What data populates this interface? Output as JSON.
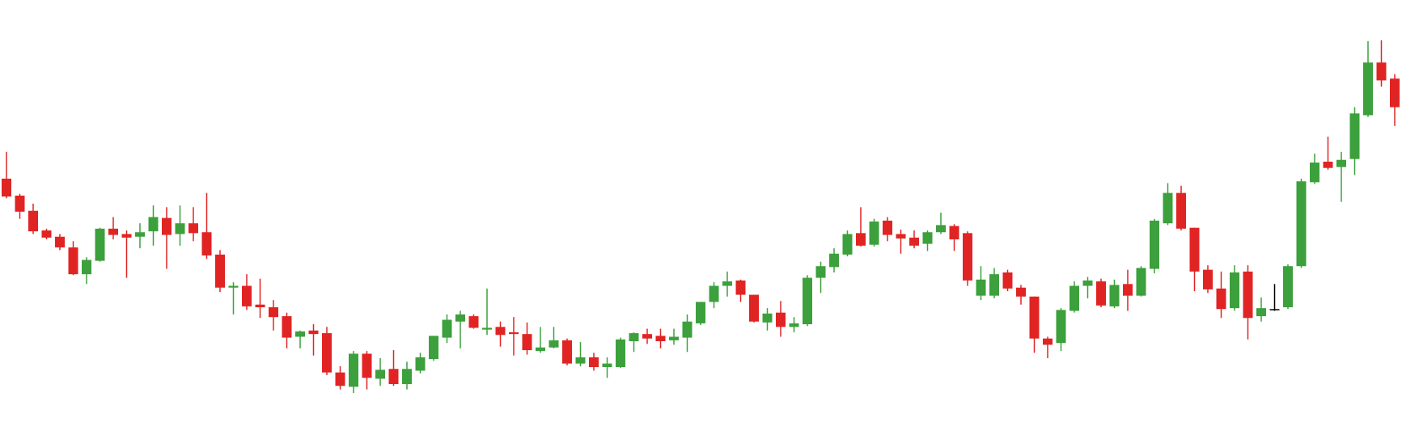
{
  "chart_data": {
    "type": "candlestick",
    "up_color": "#3ca03c",
    "down_color": "#e02424",
    "flat_color": "#000000",
    "ylim": [
      0,
      487
    ],
    "open": [
      287,
      268,
      251,
      229,
      222,
      210,
      180,
      195,
      231,
      225,
      222,
      228,
      243,
      225,
      237,
      227,
      202,
      165,
      167,
      146,
      143,
      133,
      110,
      117,
      114,
      70,
      54,
      91,
      63,
      74,
      57,
      72,
      85,
      109,
      127,
      133,
      118,
      121,
      115,
      113,
      94,
      98,
      106,
      80,
      87,
      76,
      76,
      105,
      113,
      111,
      106,
      109,
      125,
      149,
      167,
      173,
      157,
      126,
      137,
      121,
      124,
      176,
      188,
      202,
      226,
      213,
      240,
      225,
      221,
      214,
      227,
      234,
      226,
      156,
      156,
      182,
      165,
      155,
      108,
      103,
      139,
      167,
      172,
      144,
      169,
      156,
      186,
      237,
      271,
      232,
      185,
      164,
      142,
      183,
      133,
      141,
      143,
      189,
      283,
      306,
      300,
      309,
      358,
      417,
      399
    ],
    "high": [
      317,
      270,
      259,
      231,
      225,
      217,
      199,
      232,
      244,
      229,
      237,
      257,
      255,
      257,
      255,
      271,
      207,
      171,
      180,
      175,
      151,
      137,
      117,
      124,
      121,
      77,
      94,
      94,
      86,
      95,
      82,
      92,
      111,
      135,
      139,
      135,
      164,
      127,
      132,
      126,
      121,
      121,
      108,
      104,
      92,
      87,
      109,
      115,
      119,
      119,
      119,
      135,
      149,
      171,
      183,
      174,
      157,
      142,
      150,
      132,
      179,
      194,
      209,
      229,
      255,
      242,
      244,
      230,
      229,
      229,
      249,
      236,
      228,
      189,
      187,
      185,
      168,
      155,
      110,
      142,
      172,
      177,
      175,
      174,
      185,
      189,
      242,
      282,
      279,
      232,
      190,
      183,
      190,
      190,
      154,
      169,
      191,
      287,
      315,
      334,
      317,
      367,
      441,
      442,
      404
    ],
    "low": [
      265,
      242,
      225,
      219,
      207,
      179,
      169,
      194,
      219,
      176,
      209,
      212,
      186,
      212,
      217,
      197,
      160,
      135,
      140,
      131,
      117,
      97,
      97,
      89,
      67,
      51,
      47,
      51,
      55,
      55,
      51,
      69,
      83,
      103,
      97,
      119,
      112,
      99,
      89,
      90,
      92,
      97,
      78,
      77,
      72,
      64,
      75,
      93,
      102,
      97,
      101,
      93,
      123,
      142,
      155,
      149,
      126,
      117,
      110,
      115,
      122,
      159,
      182,
      200,
      211,
      211,
      217,
      203,
      209,
      206,
      225,
      206,
      167,
      151,
      153,
      161,
      146,
      92,
      86,
      94,
      137,
      153,
      143,
      142,
      139,
      155,
      181,
      235,
      229,
      161,
      159,
      131,
      139,
      107,
      127,
      139,
      141,
      187,
      281,
      297,
      261,
      291,
      356,
      390,
      346
    ],
    "close": [
      267,
      250,
      228,
      221,
      210,
      180,
      196,
      231,
      224,
      221,
      227,
      244,
      224,
      237,
      226,
      201,
      165,
      167,
      144,
      143,
      132,
      109,
      116,
      113,
      70,
      55,
      91,
      64,
      73,
      57,
      74,
      87,
      111,
      129,
      135,
      120,
      120,
      112,
      113,
      95,
      98,
      106,
      80,
      87,
      76,
      80,
      107,
      114,
      108,
      105,
      110,
      127,
      149,
      167,
      172,
      157,
      127,
      136,
      121,
      125,
      176,
      189,
      203,
      225,
      212,
      239,
      224,
      220,
      212,
      227,
      235,
      219,
      173,
      174,
      180,
      164,
      155,
      108,
      101,
      140,
      167,
      173,
      145,
      168,
      156,
      187,
      240,
      271,
      231,
      183,
      163,
      141,
      182,
      131,
      142,
      141,
      189,
      284,
      305,
      299,
      308,
      360,
      417,
      397,
      367
    ]
  }
}
